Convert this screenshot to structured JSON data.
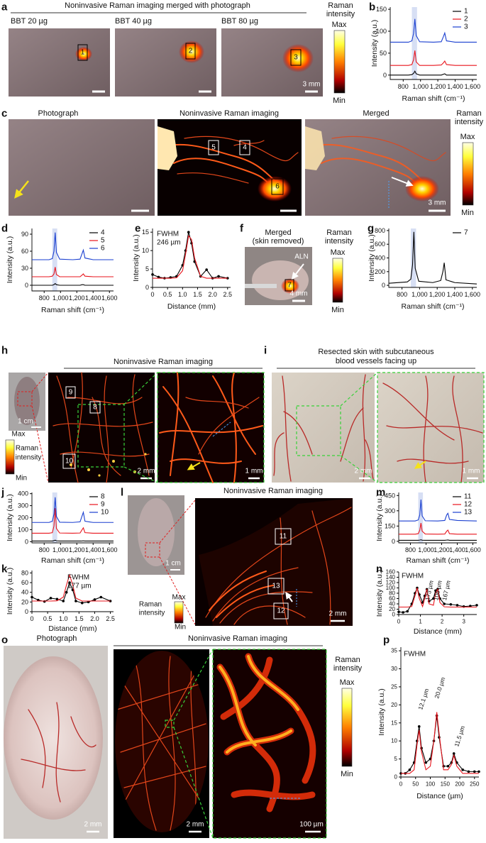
{
  "figure": {
    "panel_labels": [
      "a",
      "b",
      "c",
      "d",
      "e",
      "f",
      "g",
      "h",
      "i",
      "j",
      "k",
      "l",
      "m",
      "n",
      "o",
      "p"
    ],
    "a": {
      "title": "Noninvasive Raman imaging merged with photograph",
      "conditions": [
        "BBT 20 µg",
        "BBT 40 µg",
        "BBT 80 µg"
      ],
      "rois": [
        "1",
        "2",
        "3"
      ],
      "scale_bar": "3 mm",
      "colorbar": {
        "title": [
          "Raman",
          "intensity"
        ],
        "max": "Max",
        "min": "Min"
      }
    },
    "c": {
      "titles": [
        "Photograph",
        "Noninvasive Raman imaging",
        "Merged"
      ],
      "rois": [
        "5",
        "4",
        "6"
      ],
      "scale_bar": "3 mm",
      "colorbar": {
        "title": [
          "Raman",
          "intensity"
        ],
        "max": "Max",
        "min": "Min"
      }
    },
    "f": {
      "title": [
        "Merged",
        "(skin removed)"
      ],
      "annotation": "ALN",
      "roi": "7",
      "scale_bar": "4 mm",
      "colorbar": {
        "title": [
          "Raman",
          "intensity"
        ],
        "max": "Max",
        "min": "Min"
      }
    },
    "h": {
      "title": "Noninvasive Raman imaging",
      "rois": [
        "9",
        "8",
        "10"
      ],
      "scale_bars": [
        "1 cm",
        "2 mm",
        "1 mm"
      ],
      "colorbar": {
        "title": [
          "Raman",
          "intensity"
        ],
        "max": "Max",
        "min": "Min"
      }
    },
    "i": {
      "title": [
        "Resected skin with subcutaneous",
        "blood vessels facing up"
      ],
      "scale_bars": [
        "2 mm",
        "1 mm"
      ]
    },
    "l": {
      "title": "Noninvasive Raman imaging",
      "rois": [
        "11",
        "13",
        "12"
      ],
      "scale_bars": [
        "1 cm",
        "2 mm"
      ],
      "colorbar": {
        "title": [
          "Raman",
          "intensity"
        ],
        "max": "Max",
        "min": "Min"
      }
    },
    "o": {
      "titles": [
        "Photograph",
        "Noninvasive Raman imaging"
      ],
      "scale_bars": [
        "2 mm",
        "2 mm",
        "100 µm"
      ],
      "colorbar": {
        "title": [
          "Raman",
          "intensity"
        ],
        "max": "Max",
        "min": "Min"
      }
    }
  },
  "chart_data": [
    {
      "type": "line",
      "xlabel": "Raman shift (cm⁻¹)",
      "ylabel": "Intensity (a.u.)",
      "x": [
        650,
        860,
        900,
        920,
        935,
        950,
        990,
        1150,
        1240,
        1265,
        1280,
        1300,
        1400,
        1650
      ],
      "xlim": [
        650,
        1650
      ],
      "xticks": [
        800,
        {
          "value": 1000,
          "label": "1,000"
        },
        {
          "value": 1200,
          "label": "1,200"
        },
        {
          "value": 1400,
          "label": "1,400"
        },
        {
          "value": 1600,
          "label": "1,600"
        }
      ],
      "ylim": [
        -10,
        155
      ],
      "yticks": [
        0,
        50,
        100,
        150
      ],
      "highlight": [
        900,
        960
      ],
      "legend": "upper right",
      "series": [
        {
          "name": "1",
          "color": "#000000",
          "values": [
            0,
            0,
            1,
            4,
            9,
            3,
            0,
            0,
            0,
            2,
            3,
            0,
            0,
            0
          ]
        },
        {
          "name": "2",
          "color": "#e8141c",
          "values": [
            22,
            22,
            24,
            35,
            56,
            30,
            22,
            22,
            23,
            28,
            32,
            24,
            22,
            22
          ]
        },
        {
          "name": "3",
          "color": "#1a3fd0",
          "values": [
            75,
            75,
            78,
            95,
            128,
            90,
            76,
            75,
            76,
            88,
            96,
            78,
            75,
            75
          ]
        }
      ]
    },
    {
      "type": "line",
      "xlabel": "Raman shift (cm⁻¹)",
      "ylabel": "Intensity (a.u.)",
      "x": [
        650,
        860,
        900,
        920,
        935,
        950,
        990,
        1150,
        1240,
        1265,
        1280,
        1300,
        1400,
        1650
      ],
      "xlim": [
        650,
        1650
      ],
      "xticks": [
        800,
        {
          "value": 1000,
          "label": "1,000"
        },
        {
          "value": 1200,
          "label": "1,200"
        },
        {
          "value": 1400,
          "label": "1,400"
        },
        {
          "value": 1600,
          "label": "1,600"
        }
      ],
      "ylim": [
        -10,
        100
      ],
      "yticks": [
        0,
        30,
        60,
        90
      ],
      "highlight": [
        900,
        960
      ],
      "legend": "upper right",
      "series": [
        {
          "name": "4",
          "color": "#000000",
          "values": [
            0,
            0,
            0,
            1,
            3,
            1,
            0,
            0,
            0,
            1,
            1,
            0,
            0,
            0
          ]
        },
        {
          "name": "5",
          "color": "#e8141c",
          "values": [
            15,
            15,
            16,
            20,
            32,
            19,
            15,
            15,
            15,
            18,
            20,
            16,
            15,
            15
          ]
        },
        {
          "name": "6",
          "color": "#1a3fd0",
          "values": [
            45,
            45,
            47,
            60,
            93,
            58,
            46,
            45,
            46,
            56,
            62,
            48,
            45,
            45
          ]
        }
      ]
    },
    {
      "type": "line",
      "xlabel": "Distance (mm)",
      "ylabel": "Intensity (a.u.)",
      "annotations": [
        "FWHM",
        "246 µm"
      ],
      "x": [
        0,
        0.2,
        0.4,
        0.6,
        0.8,
        1.0,
        1.1,
        1.2,
        1.3,
        1.4,
        1.6,
        1.8,
        2.0,
        2.2,
        2.5
      ],
      "xlim": [
        0,
        2.6
      ],
      "xticks": [
        0,
        0.5,
        {
          "value": 1,
          "label": "1.0"
        },
        1.5,
        {
          "value": 2,
          "label": "2.0"
        },
        2.5
      ],
      "ylim": [
        0,
        16
      ],
      "yticks": [
        0,
        5,
        10,
        15
      ],
      "series": [
        {
          "color": "#000000",
          "marker": true,
          "values": [
            3.5,
            2.8,
            2.5,
            2.7,
            3,
            6,
            10,
            15,
            12,
            7,
            3,
            4.8,
            2.5,
            3,
            2.5
          ]
        },
        {
          "color": "#e8141c",
          "values": [
            2.5,
            2.5,
            2.5,
            2.5,
            2.6,
            4.5,
            9,
            14,
            13,
            8,
            3,
            2.5,
            2.5,
            2.5,
            2.5
          ]
        }
      ]
    },
    {
      "type": "line",
      "xlabel": "Raman shift (cm⁻¹)",
      "ylabel": "Intensity (a.u.)",
      "x": [
        650,
        860,
        900,
        920,
        935,
        950,
        990,
        1150,
        1240,
        1265,
        1280,
        1300,
        1400,
        1650
      ],
      "xlim": [
        650,
        1650
      ],
      "xticks": [
        800,
        {
          "value": 1000,
          "label": "1,000"
        },
        {
          "value": 1200,
          "label": "1,200"
        },
        {
          "value": 1400,
          "label": "1,400"
        },
        {
          "value": 1600,
          "label": "1,600"
        }
      ],
      "ylim": [
        -30,
        830
      ],
      "yticks": [
        0,
        200,
        400,
        600,
        800
      ],
      "highlight": [
        900,
        960
      ],
      "legend": "upper right",
      "series": [
        {
          "name": "7",
          "color": "#000000",
          "values": [
            30,
            50,
            90,
            300,
            780,
            250,
            60,
            40,
            70,
            200,
            330,
            80,
            40,
            20
          ]
        }
      ]
    },
    {
      "type": "line",
      "xlabel": "Raman shift (cm⁻¹)",
      "ylabel": "Intensity (a.u.)",
      "x": [
        650,
        860,
        900,
        920,
        935,
        950,
        990,
        1150,
        1240,
        1265,
        1280,
        1300,
        1400,
        1650
      ],
      "xlim": [
        650,
        1650
      ],
      "xticks": [
        800,
        {
          "value": 1000,
          "label": "1,000"
        },
        {
          "value": 1200,
          "label": "1,200"
        },
        {
          "value": 1400,
          "label": "1,400"
        },
        {
          "value": 1600,
          "label": "1,600"
        }
      ],
      "ylim": [
        -10,
        410
      ],
      "yticks": [
        0,
        100,
        200,
        300,
        400
      ],
      "highlight": [
        900,
        960
      ],
      "legend": "upper right",
      "series": [
        {
          "name": "8",
          "color": "#000000",
          "values": [
            5,
            5,
            5,
            8,
            12,
            7,
            5,
            5,
            5,
            6,
            7,
            5,
            5,
            5
          ]
        },
        {
          "name": "9",
          "color": "#e8141c",
          "values": [
            70,
            70,
            75,
            130,
            280,
            110,
            72,
            70,
            72,
            100,
            115,
            75,
            70,
            70
          ]
        },
        {
          "name": "10",
          "color": "#1a3fd0",
          "values": [
            160,
            160,
            170,
            230,
            370,
            210,
            162,
            160,
            165,
            215,
            245,
            170,
            160,
            160
          ]
        }
      ]
    },
    {
      "type": "line",
      "xlabel": "Distance (mm)",
      "ylabel": "Intensity (a.u.)",
      "annotations": [
        "FWHM",
        "177 µm"
      ],
      "x": [
        0,
        0.2,
        0.4,
        0.6,
        0.8,
        1.0,
        1.1,
        1.2,
        1.3,
        1.4,
        1.6,
        1.8,
        2.0,
        2.2,
        2.5
      ],
      "xlim": [
        0,
        2.6
      ],
      "xticks": [
        0,
        0.5,
        {
          "value": 1,
          "label": "1.0"
        },
        1.5,
        {
          "value": 2,
          "label": "2.0"
        },
        2.5
      ],
      "ylim": [
        0,
        85
      ],
      "yticks": [
        0,
        20,
        40,
        60,
        80
      ],
      "series": [
        {
          "color": "#000000",
          "marker": true,
          "values": [
            30,
            24,
            21,
            28,
            26,
            22,
            40,
            60,
            45,
            22,
            18,
            20,
            25,
            30,
            22
          ]
        },
        {
          "color": "#e8141c",
          "values": [
            22,
            22,
            22,
            22,
            22.5,
            30,
            55,
            76,
            55,
            28,
            22,
            22,
            22,
            22,
            22
          ]
        }
      ]
    },
    {
      "type": "line",
      "xlabel": "Raman shift (cm⁻¹)",
      "ylabel": "Intensity (a.u.)",
      "x": [
        650,
        860,
        900,
        920,
        935,
        950,
        990,
        1150,
        1240,
        1265,
        1280,
        1300,
        1400,
        1650
      ],
      "xlim": [
        650,
        1650
      ],
      "xticks": [
        800,
        {
          "value": 1000,
          "label": "1,000"
        },
        {
          "value": 1200,
          "label": "1,200"
        },
        {
          "value": 1400,
          "label": "1,400"
        },
        {
          "value": 1600,
          "label": "1,600"
        }
      ],
      "ylim": [
        -15,
        480
      ],
      "yticks": [
        0,
        150,
        300,
        450
      ],
      "highlight": [
        900,
        960
      ],
      "legend": "upper right",
      "series": [
        {
          "name": "11",
          "color": "#000000",
          "values": [
            10,
            10,
            10,
            12,
            15,
            11,
            10,
            10,
            10,
            12,
            13,
            10,
            10,
            10
          ]
        },
        {
          "name": "12",
          "color": "#e8141c",
          "values": [
            70,
            70,
            75,
            110,
            180,
            100,
            72,
            70,
            72,
            100,
            110,
            75,
            70,
            70
          ]
        },
        {
          "name": "13",
          "color": "#1a3fd0",
          "values": [
            200,
            200,
            210,
            260,
            410,
            250,
            202,
            200,
            205,
            260,
            275,
            215,
            205,
            200
          ]
        }
      ]
    },
    {
      "type": "line",
      "xlabel": "Distance (mm)",
      "ylabel": "Intensity (a.u.)",
      "annotations": [
        "FWHM",
        "173 µm",
        "106 µm",
        "167 µm"
      ],
      "x": [
        0,
        0.2,
        0.4,
        0.6,
        0.75,
        0.85,
        0.95,
        1.1,
        1.2,
        1.3,
        1.4,
        1.6,
        1.7,
        1.8,
        1.9,
        2.1,
        2.4,
        2.7,
        3.0,
        3.3,
        3.6
      ],
      "xlim": [
        0,
        3.6
      ],
      "xticks": [
        0,
        1,
        2,
        3
      ],
      "ylim": [
        0,
        160
      ],
      "yticks": [
        0,
        20,
        40,
        60,
        80,
        100,
        120,
        140,
        160
      ],
      "series": [
        {
          "color": "#000000",
          "marker": true,
          "values": [
            10,
            8,
            12,
            40,
            80,
            100,
            75,
            45,
            70,
            95,
            50,
            60,
            90,
            96,
            60,
            40,
            38,
            35,
            30,
            32,
            35
          ]
        },
        {
          "color": "#e8141c",
          "values": [
            28,
            28,
            28,
            30,
            70,
            100,
            60,
            30,
            60,
            96,
            40,
            35,
            80,
            95,
            45,
            29,
            28,
            28,
            28,
            28,
            28
          ]
        }
      ]
    },
    {
      "type": "line",
      "xlabel": "Distance (µm)",
      "ylabel": "Intensity (a.u.)",
      "annotations": [
        "FWHM",
        "12.1 µm",
        "20.0 µm",
        "11.5 µm"
      ],
      "x": [
        0,
        15,
        30,
        45,
        55,
        62,
        70,
        85,
        100,
        112,
        122,
        130,
        145,
        160,
        172,
        180,
        190,
        210,
        230,
        250,
        265
      ],
      "xlim": [
        0,
        265
      ],
      "xticks": [
        0,
        50,
        100,
        150,
        200,
        250
      ],
      "ylim": [
        0,
        36
      ],
      "yticks": [
        0,
        5,
        10,
        15,
        20,
        25,
        30,
        35
      ],
      "series": [
        {
          "color": "#000000",
          "marker": true,
          "values": [
            1,
            1,
            2,
            4,
            10,
            14,
            8,
            4,
            5,
            10,
            17,
            11,
            3,
            3,
            4,
            6.5,
            4,
            2,
            1.5,
            1.5,
            1.5
          ]
        },
        {
          "color": "#e8141c",
          "values": [
            1,
            1,
            1,
            2,
            9,
            13,
            7,
            2,
            3,
            10,
            18,
            12,
            2,
            2,
            3.5,
            6,
            3,
            1,
            1,
            1,
            1
          ]
        }
      ]
    }
  ]
}
